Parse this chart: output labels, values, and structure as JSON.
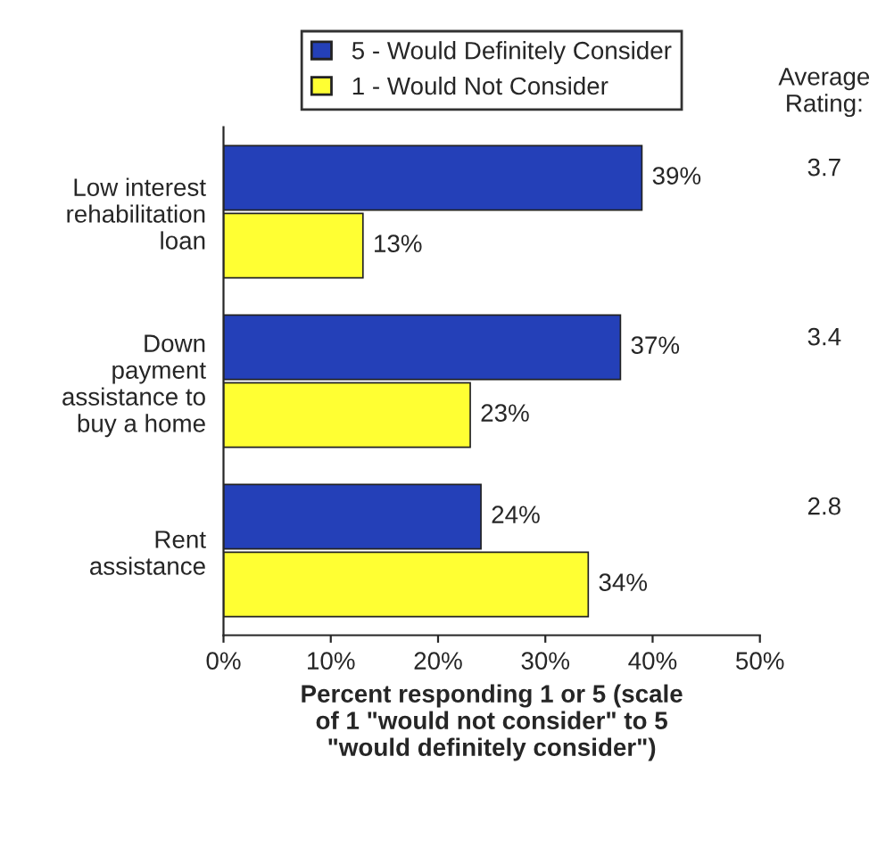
{
  "chart_data": {
    "type": "bar",
    "orientation": "horizontal",
    "categories": [
      "Low interest\nrehabilitation\nloan",
      "Down\npayment\nassistance to\nbuy a home",
      "Rent\nassistance"
    ],
    "series": [
      {
        "name": "5 - Would Definitely Consider",
        "color": "#2440b8",
        "values": [
          39,
          37,
          24
        ],
        "value_labels": [
          "39%",
          "37%",
          "24%"
        ]
      },
      {
        "name": "1 - Would Not Consider",
        "color": "#ffff33",
        "values": [
          13,
          23,
          34
        ],
        "value_labels": [
          "13%",
          "23%",
          "34%"
        ]
      }
    ],
    "xlim": [
      0,
      50
    ],
    "xticks": [
      {
        "value": 0,
        "label": "0%"
      },
      {
        "value": 10,
        "label": "10%"
      },
      {
        "value": 20,
        "label": "20%"
      },
      {
        "value": 30,
        "label": "30%"
      },
      {
        "value": 40,
        "label": "40%"
      },
      {
        "value": 50,
        "label": "50%"
      }
    ],
    "xlabel": "Percent responding 1 or 5 (scale\nof 1 \"would not consider\" to 5\n\"would definitely consider\")",
    "annotations": [
      "Average\nRating:",
      "3.7",
      "3.4",
      "2.8"
    ],
    "legend": "top",
    "grid": false
  }
}
